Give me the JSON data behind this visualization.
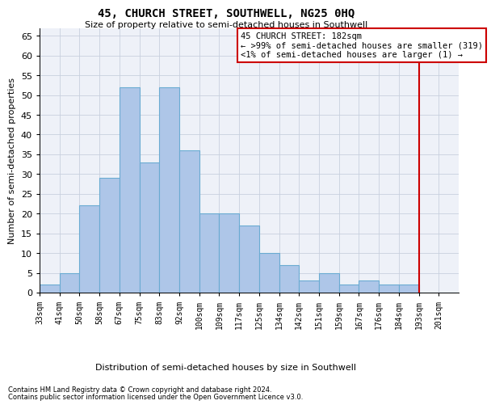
{
  "title": "45, CHURCH STREET, SOUTHWELL, NG25 0HQ",
  "subtitle": "Size of property relative to semi-detached houses in Southwell",
  "xlabel": "Distribution of semi-detached houses by size in Southwell",
  "ylabel": "Number of semi-detached properties",
  "bar_labels": [
    "33sqm",
    "41sqm",
    "50sqm",
    "58sqm",
    "67sqm",
    "75sqm",
    "83sqm",
    "92sqm",
    "100sqm",
    "109sqm",
    "117sqm",
    "125sqm",
    "134sqm",
    "142sqm",
    "151sqm",
    "159sqm",
    "167sqm",
    "176sqm",
    "184sqm",
    "193sqm",
    "201sqm"
  ],
  "bar_values": [
    2,
    5,
    22,
    29,
    52,
    33,
    52,
    36,
    20,
    20,
    17,
    10,
    7,
    3,
    5,
    2,
    3,
    2,
    2,
    0,
    0
  ],
  "bar_color": "#aec6e8",
  "bar_edgecolor": "#6aabd2",
  "ylim": [
    0,
    67
  ],
  "yticks": [
    0,
    5,
    10,
    15,
    20,
    25,
    30,
    35,
    40,
    45,
    50,
    55,
    60,
    65
  ],
  "vline_bar_index": 18,
  "property_line_label": "45 CHURCH STREET: 182sqm",
  "annotation_line1": "← >99% of semi-detached houses are smaller (319)",
  "annotation_line2": "<1% of semi-detached houses are larger (1) →",
  "annotation_box_color": "#cc0000",
  "vline_color": "#cc0000",
  "grid_color": "#c8d0de",
  "bg_color": "#eef1f8",
  "title_fontsize": 10,
  "subtitle_fontsize": 8,
  "footnote1": "Contains HM Land Registry data © Crown copyright and database right 2024.",
  "footnote2": "Contains public sector information licensed under the Open Government Licence v3.0."
}
